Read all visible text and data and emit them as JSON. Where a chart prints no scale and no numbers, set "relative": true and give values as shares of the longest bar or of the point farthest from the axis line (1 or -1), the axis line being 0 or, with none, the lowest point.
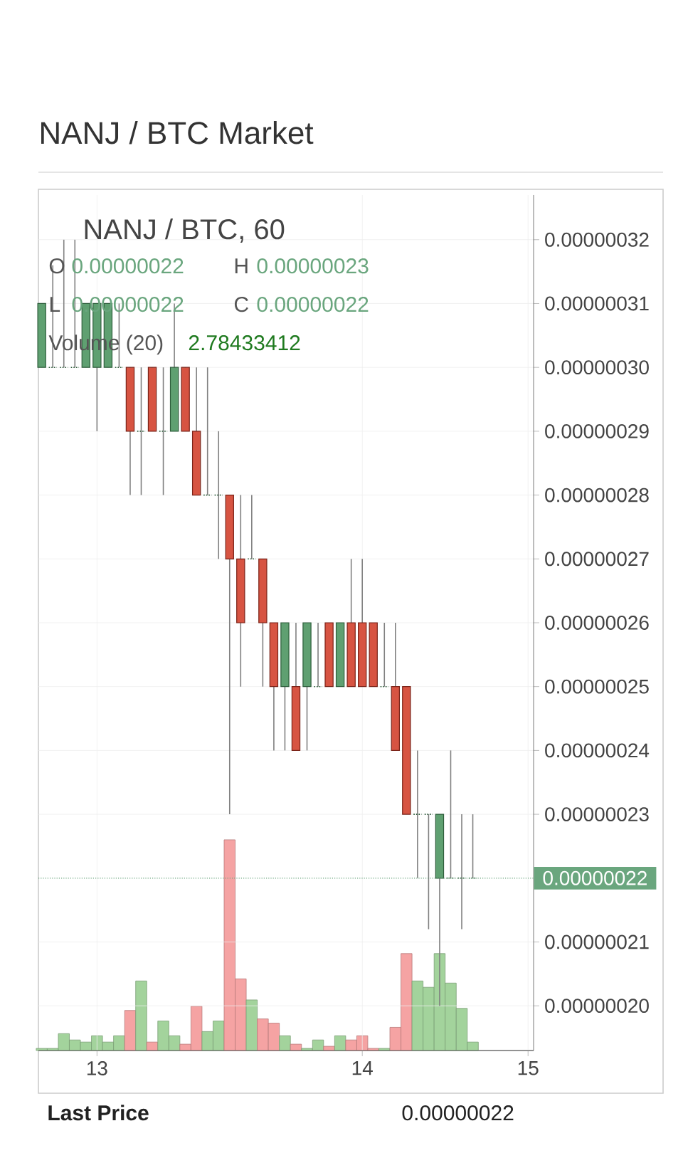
{
  "chart_data": [
    {
      "type": "candlestick",
      "title": "NANJ / BTC Market",
      "subtitle": "NANJ / BTC, 60",
      "annotations": [
        "O",
        "0.00000022",
        "H",
        "0.00000023",
        "L",
        "0.00000022",
        "C",
        "0.00000022",
        "Last Price",
        "0.00000022"
      ],
      "categories": [
        null,
        null,
        null,
        null,
        null,
        "13",
        null,
        null,
        null,
        null,
        null,
        null,
        null,
        null,
        null,
        null,
        null,
        null,
        null,
        null,
        null,
        null,
        null,
        null,
        null,
        null,
        null,
        null,
        null,
        "14",
        null,
        null,
        null,
        null,
        null,
        null,
        null,
        null,
        null,
        null,
        null,
        null,
        null,
        null,
        "15"
      ],
      "ohlc": [
        [
          3e-07,
          3.1e-07,
          3e-07,
          3.1e-07
        ],
        [
          3e-07,
          3.16e-07,
          3e-07,
          3e-07
        ],
        [
          3e-07,
          3.2e-07,
          3e-07,
          3e-07
        ],
        [
          3e-07,
          3.2e-07,
          3e-07,
          3e-07
        ],
        [
          3e-07,
          3.1e-07,
          3e-07,
          3.1e-07
        ],
        [
          3e-07,
          3.1e-07,
          2.9e-07,
          3.1e-07
        ],
        [
          3e-07,
          3.1e-07,
          3e-07,
          3.1e-07
        ],
        [
          3e-07,
          3.1e-07,
          3e-07,
          3e-07
        ],
        [
          3e-07,
          3e-07,
          2.8e-07,
          2.9e-07
        ],
        [
          2.9e-07,
          3e-07,
          2.8e-07,
          2.9e-07
        ],
        [
          3e-07,
          3e-07,
          2.9e-07,
          2.9e-07
        ],
        [
          2.9e-07,
          3e-07,
          2.8e-07,
          2.9e-07
        ],
        [
          2.9e-07,
          3.1e-07,
          2.9e-07,
          3e-07
        ],
        [
          3e-07,
          3e-07,
          2.9e-07,
          2.9e-07
        ],
        [
          2.9e-07,
          3e-07,
          2.8e-07,
          2.8e-07
        ],
        [
          2.8e-07,
          3e-07,
          2.8e-07,
          2.8e-07
        ],
        [
          2.8e-07,
          2.9e-07,
          2.7e-07,
          2.8e-07
        ],
        [
          2.8e-07,
          2.8e-07,
          2.3e-07,
          2.7e-07
        ],
        [
          2.7e-07,
          2.8e-07,
          2.5e-07,
          2.6e-07
        ],
        [
          2.7e-07,
          2.8e-07,
          2.7e-07,
          2.7e-07
        ],
        [
          2.7e-07,
          2.7e-07,
          2.5e-07,
          2.6e-07
        ],
        [
          2.6e-07,
          2.6e-07,
          2.4e-07,
          2.5e-07
        ],
        [
          2.5e-07,
          2.6e-07,
          2.4e-07,
          2.6e-07
        ],
        [
          2.5e-07,
          2.6e-07,
          2.4e-07,
          2.4e-07
        ],
        [
          2.5e-07,
          2.6e-07,
          2.4e-07,
          2.6e-07
        ],
        [
          2.5e-07,
          2.6e-07,
          2.5e-07,
          2.5e-07
        ],
        [
          2.6e-07,
          2.6e-07,
          2.5e-07,
          2.5e-07
        ],
        [
          2.5e-07,
          2.6e-07,
          2.5e-07,
          2.6e-07
        ],
        [
          2.6e-07,
          2.7e-07,
          2.5e-07,
          2.5e-07
        ],
        [
          2.6e-07,
          2.7e-07,
          2.5e-07,
          2.5e-07
        ],
        [
          2.6e-07,
          2.6e-07,
          2.5e-07,
          2.5e-07
        ],
        [
          2.5e-07,
          2.6e-07,
          2.5e-07,
          2.5e-07
        ],
        [
          2.5e-07,
          2.6e-07,
          2.4e-07,
          2.4e-07
        ],
        [
          2.5e-07,
          2.5e-07,
          2.3e-07,
          2.3e-07
        ],
        [
          2.3e-07,
          2.4e-07,
          2.2e-07,
          2.3e-07
        ],
        [
          2.3e-07,
          2.3e-07,
          2.12e-07,
          2.3e-07
        ],
        [
          2.2e-07,
          2.3e-07,
          2e-07,
          2.3e-07
        ],
        [
          2.2e-07,
          2.4e-07,
          2.2e-07,
          2.2e-07
        ],
        [
          2.2e-07,
          2.3e-07,
          2.12e-07,
          2.2e-07
        ],
        [
          2.2e-07,
          2.3e-07,
          2.2e-07,
          2.2e-07
        ],
        null,
        null,
        null,
        null,
        null
      ],
      "ylim": [
        1.93e-07,
        3.27e-07
      ],
      "yticks": [
        {
          "value": 2e-07,
          "label": "0.00000020"
        },
        {
          "value": 2.1e-07,
          "label": "0.00000021"
        },
        {
          "value": 2.3e-07,
          "label": "0.00000023"
        },
        {
          "value": 2.4e-07,
          "label": "0.00000024"
        },
        {
          "value": 2.5e-07,
          "label": "0.00000025"
        },
        {
          "value": 2.6e-07,
          "label": "0.00000026"
        },
        {
          "value": 2.7e-07,
          "label": "0.00000027"
        },
        {
          "value": 2.8e-07,
          "label": "0.00000028"
        },
        {
          "value": 2.9e-07,
          "label": "0.00000029"
        },
        {
          "value": 3e-07,
          "label": "0.00000030"
        },
        {
          "value": 3.1e-07,
          "label": "0.00000031"
        },
        {
          "value": 3.2e-07,
          "label": "0.00000032"
        }
      ],
      "grid": true,
      "ref_lines": [
        {
          "axis": "y",
          "value": 2.2e-07,
          "label": "0.00000022",
          "color": "#6aa67e",
          "line_style": "dotted"
        }
      ]
    },
    {
      "type": "bar",
      "title": "Volume (20)",
      "annotations": [
        "2.78433412"
      ],
      "categories": [
        null,
        null,
        null,
        null,
        null,
        null,
        null,
        null,
        null,
        null,
        null,
        null,
        null,
        null,
        null,
        null,
        null,
        null,
        null,
        null,
        null,
        null,
        null,
        null,
        null,
        null,
        null,
        null,
        null,
        null,
        null,
        null,
        null,
        null,
        null,
        null,
        null,
        null,
        null,
        null,
        null,
        null,
        null,
        null,
        null
      ],
      "values": [
        0.01,
        0.01,
        0.08,
        0.05,
        0.04,
        0.07,
        0.04,
        0.07,
        0.19,
        0.33,
        0.04,
        0.14,
        0.07,
        0.03,
        0.21,
        0.09,
        0.14,
        1,
        0.34,
        0.24,
        0.15,
        0.13,
        0.07,
        0.03,
        0.01,
        0.05,
        0.02,
        0.07,
        0.05,
        0.07,
        0.01,
        0.01,
        0.11,
        0.46,
        0.33,
        0.3,
        0.46,
        0.32,
        0.2,
        0.04,
        null,
        null,
        null,
        null,
        null
      ],
      "colors": [
        "#a3d39c",
        "#a3d39c",
        "#a3d39c",
        "#a3d39c",
        "#a3d39c",
        "#a3d39c",
        "#a3d39c",
        "#a3d39c",
        "#f5a3a3",
        "#a3d39c",
        "#f5a3a3",
        "#a3d39c",
        "#a3d39c",
        "#f5a3a3",
        "#f5a3a3",
        "#a3d39c",
        "#a3d39c",
        "#f5a3a3",
        "#f5a3a3",
        "#a3d39c",
        "#f5a3a3",
        "#f5a3a3",
        "#a3d39c",
        "#f5a3a3",
        "#a3d39c",
        "#a3d39c",
        "#f5a3a3",
        "#a3d39c",
        "#f5a3a3",
        "#f5a3a3",
        "#f5a3a3",
        "#a3d39c",
        "#f5a3a3",
        "#f5a3a3",
        "#a3d39c",
        "#a3d39c",
        "#a3d39c",
        "#a3d39c",
        "#a3d39c",
        "#a3d39c",
        null,
        null,
        null,
        null,
        null
      ],
      "relative": true,
      "tick_labels": false
    }
  ]
}
